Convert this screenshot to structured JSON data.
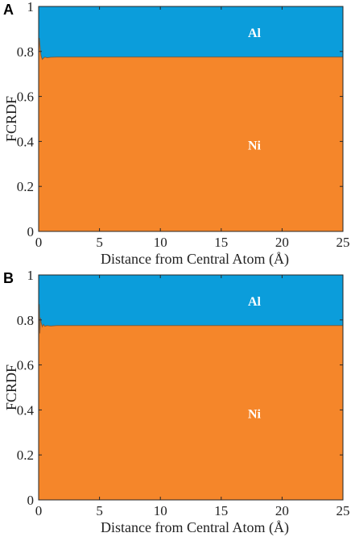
{
  "chart_data": [
    {
      "type": "area",
      "panel_label": "A",
      "xlabel": "Distance from Central Atom (Å)",
      "ylabel": "FCRDF",
      "xlim": [
        0,
        25
      ],
      "ylim": [
        0,
        1
      ],
      "xticks": [
        "0",
        "5",
        "10",
        "15",
        "20",
        "25"
      ],
      "yticks": [
        "0",
        "0.2",
        "0.4",
        "0.6",
        "0.8",
        "1"
      ],
      "stacked": true,
      "grid": false,
      "series": [
        {
          "name": "Ni",
          "color": "#F5862A",
          "x": [
            0,
            0.05,
            0.1,
            0.15,
            0.2,
            0.3,
            0.4,
            0.5,
            0.7,
            1.0,
            1.5,
            2.0,
            3.0,
            5.0,
            10.0,
            15.0,
            20.0,
            25.0
          ],
          "values": [
            0.79,
            0.86,
            0.83,
            0.8,
            0.78,
            0.765,
            0.77,
            0.775,
            0.772,
            0.774,
            0.775,
            0.775,
            0.775,
            0.775,
            0.775,
            0.775,
            0.775,
            0.775
          ]
        },
        {
          "name": "Al",
          "color": "#0B9DDB",
          "x": [
            0,
            25
          ],
          "values": "remainder to 1"
        }
      ]
    },
    {
      "type": "area",
      "panel_label": "B",
      "xlabel": "Distance from Central Atom (Å)",
      "ylabel": "FCRDF",
      "xlim": [
        0,
        25
      ],
      "ylim": [
        0,
        1
      ],
      "xticks": [
        "0",
        "5",
        "10",
        "15",
        "20",
        "25"
      ],
      "yticks": [
        "0",
        "0.2",
        "0.4",
        "0.6",
        "0.8",
        "1"
      ],
      "stacked": true,
      "grid": false,
      "series": [
        {
          "name": "Ni",
          "color": "#F5862A",
          "x": [
            0,
            0.05,
            0.1,
            0.15,
            0.2,
            0.3,
            0.4,
            0.5,
            0.7,
            1.0,
            1.5,
            2.0,
            3.0,
            5.0,
            10.0,
            15.0,
            20.0,
            25.0
          ],
          "values": [
            0.68,
            0.87,
            0.74,
            0.81,
            0.79,
            0.77,
            0.78,
            0.772,
            0.775,
            0.773,
            0.775,
            0.775,
            0.775,
            0.775,
            0.775,
            0.775,
            0.775,
            0.775
          ]
        },
        {
          "name": "Al",
          "color": "#0B9DDB",
          "x": [
            0,
            25
          ],
          "values": "remainder to 1"
        }
      ]
    }
  ]
}
